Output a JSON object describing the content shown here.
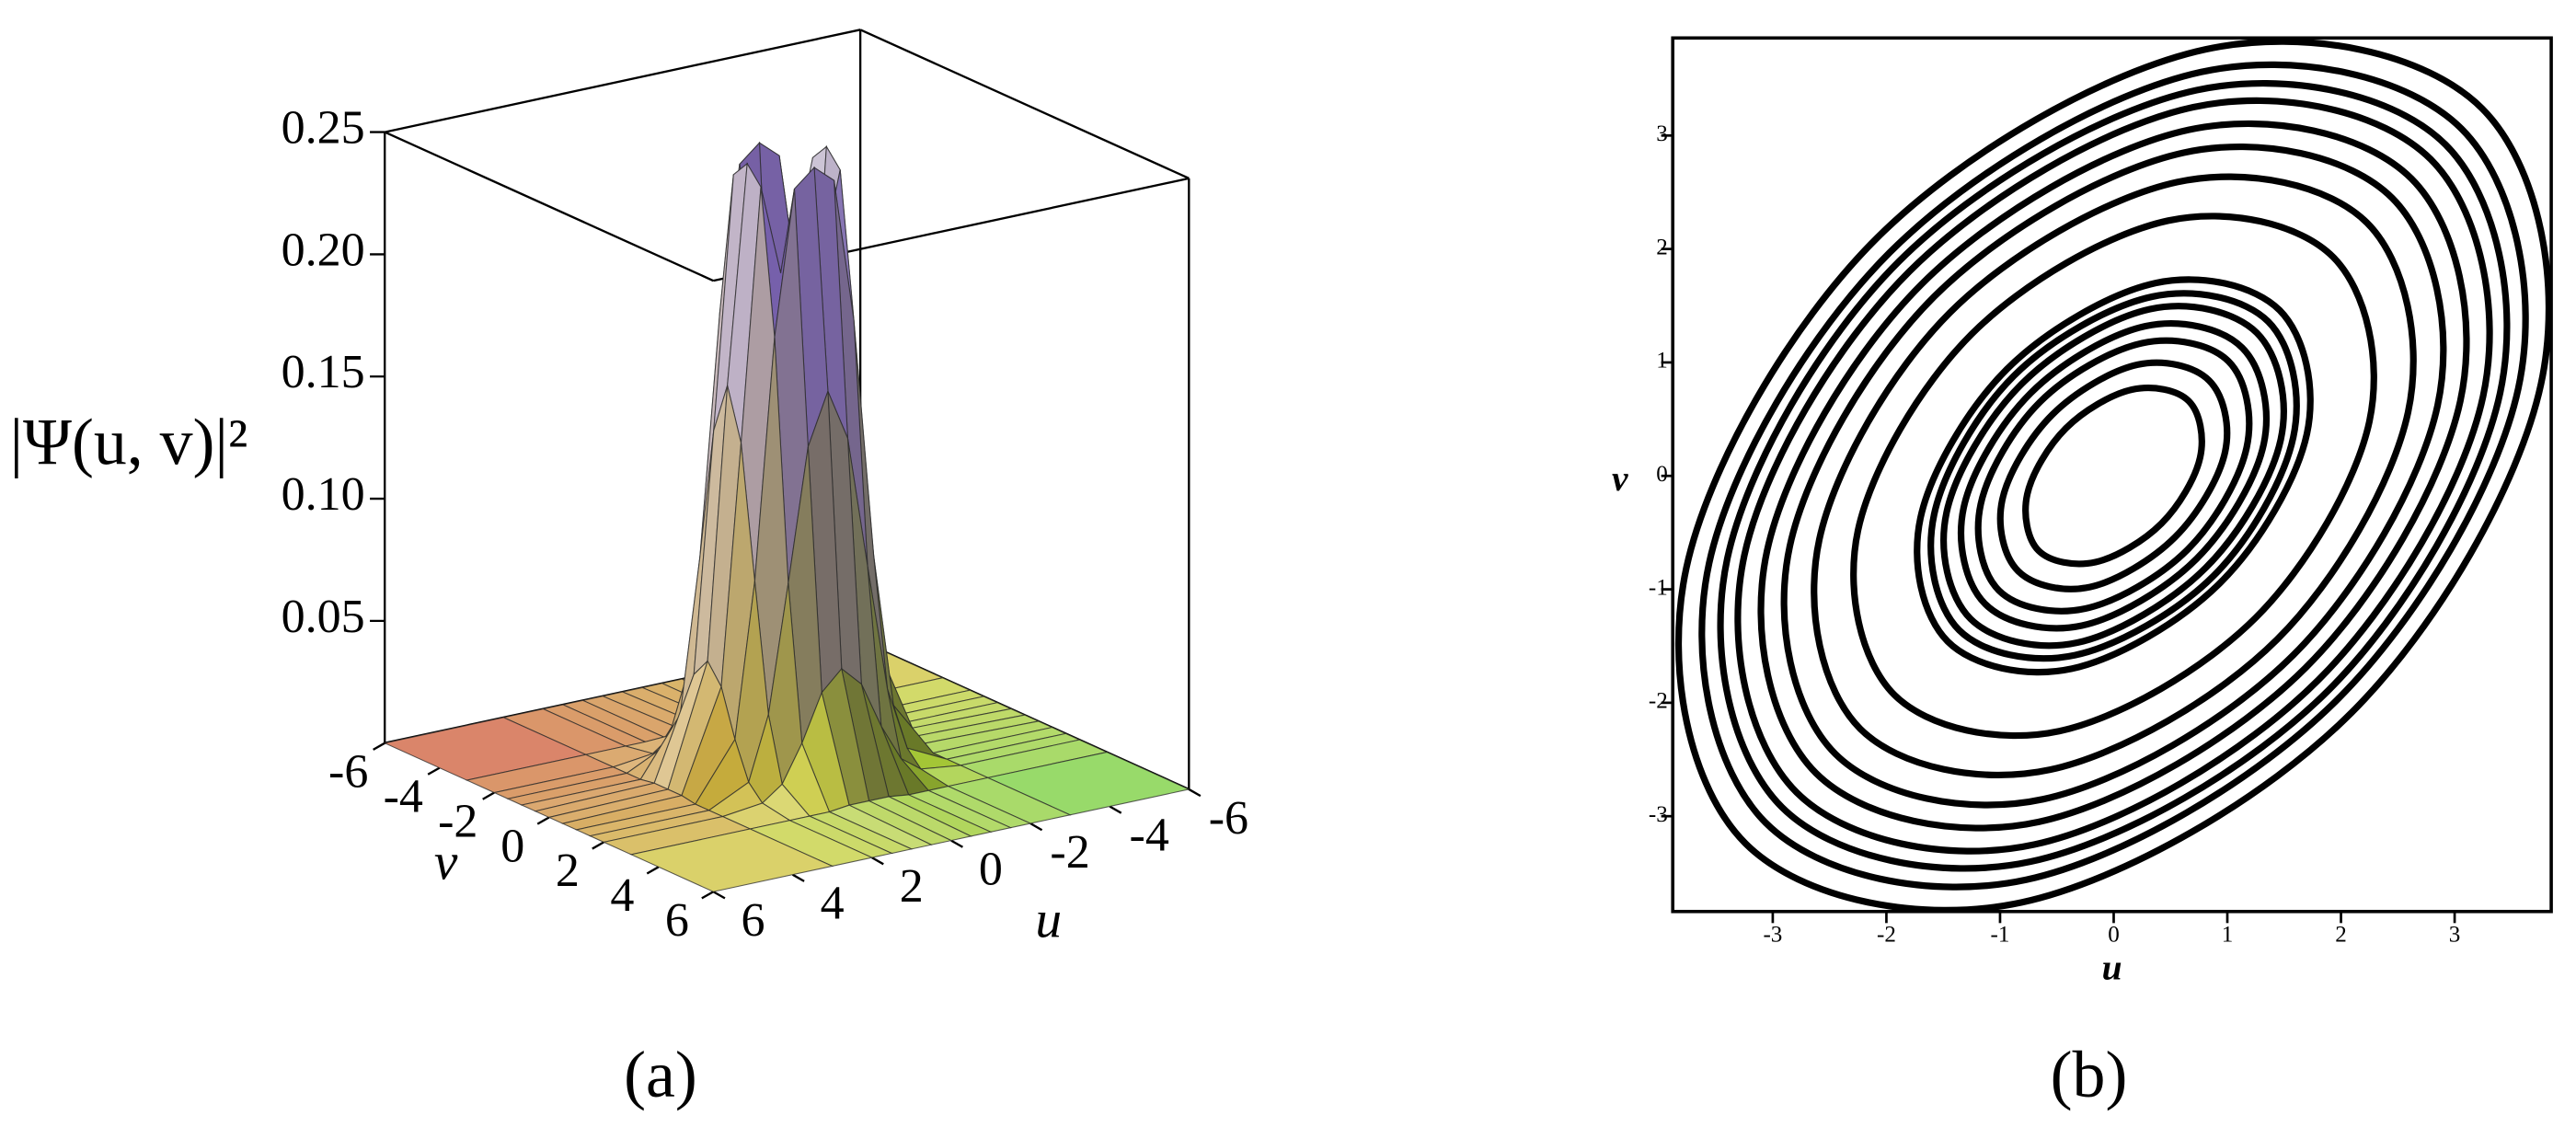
{
  "chart_data": [
    {
      "type": "surface",
      "caption": "(a)",
      "zlabel": "|Ψ(u, v)|²",
      "xlabel": "u",
      "ylabel": "v",
      "xlim": [
        -6,
        6
      ],
      "ylim": [
        -6,
        6
      ],
      "zlim": [
        0,
        0.25
      ],
      "xticks": [
        -6,
        -4,
        -2,
        0,
        2,
        4,
        6
      ],
      "yticks": [
        -6,
        -4,
        -2,
        0,
        2,
        4,
        6
      ],
      "zticks": [
        0.05,
        {
          "value": 0.1,
          "label": "0.10"
        },
        0.15,
        {
          "value": 0.2,
          "label": "0.20"
        },
        0.25
      ],
      "x": [
        -6,
        -3,
        -2,
        -1.5,
        -1,
        -0.5,
        0,
        0.5,
        1,
        1.5,
        2,
        3,
        6
      ],
      "y": [
        -6,
        -3,
        -2,
        -1.5,
        -1,
        -0.5,
        0,
        0.5,
        1,
        1.5,
        2,
        3,
        6
      ],
      "z": [
        [
          0,
          0,
          0,
          0,
          0,
          0,
          0,
          0,
          0,
          0,
          0,
          0,
          0
        ],
        [
          0,
          0,
          0,
          0,
          0,
          0.001,
          0.001,
          0.001,
          0,
          0,
          0,
          0,
          0
        ],
        [
          0,
          0,
          0.002,
          0.008,
          0.023,
          0.042,
          0.05,
          0.042,
          0.023,
          0.008,
          0.002,
          0,
          0
        ],
        [
          0,
          0,
          0.008,
          0.034,
          0.086,
          0.14,
          0.161,
          0.14,
          0.086,
          0.034,
          0.008,
          0,
          0
        ],
        [
          0,
          0,
          0.023,
          0.086,
          0.184,
          0.243,
          0.25,
          0.243,
          0.184,
          0.086,
          0.023,
          0,
          0
        ],
        [
          0,
          0.001,
          0.042,
          0.14,
          0.243,
          0.206,
          0.132,
          0.206,
          0.243,
          0.14,
          0.042,
          0.001,
          0
        ],
        [
          0,
          0.001,
          0.05,
          0.161,
          0.25,
          0.132,
          0,
          0.132,
          0.25,
          0.161,
          0.05,
          0.001,
          0
        ],
        [
          0,
          0.001,
          0.042,
          0.14,
          0.243,
          0.206,
          0.132,
          0.206,
          0.243,
          0.14,
          0.042,
          0.001,
          0
        ],
        [
          0,
          0,
          0.023,
          0.086,
          0.184,
          0.243,
          0.25,
          0.243,
          0.184,
          0.086,
          0.023,
          0,
          0
        ],
        [
          0,
          0,
          0.008,
          0.034,
          0.086,
          0.14,
          0.161,
          0.14,
          0.086,
          0.034,
          0.008,
          0,
          0
        ],
        [
          0,
          0,
          0.002,
          0.008,
          0.023,
          0.042,
          0.05,
          0.042,
          0.023,
          0.008,
          0.002,
          0,
          0
        ],
        [
          0,
          0,
          0,
          0,
          0,
          0.001,
          0.001,
          0.001,
          0,
          0,
          0,
          0,
          0
        ],
        [
          0,
          0,
          0,
          0,
          0,
          0,
          0,
          0,
          0,
          0,
          0,
          0,
          0
        ]
      ]
    },
    {
      "type": "contour",
      "caption": "(b)",
      "xlabel": "u",
      "ylabel": "v",
      "color": "#000000",
      "xlim": [
        -3.88,
        3.85
      ],
      "ylim": [
        -3.84,
        3.86
      ],
      "xticks": [
        -3,
        -2,
        -1,
        0,
        1,
        2,
        3
      ],
      "yticks": [
        -3,
        -2,
        -1,
        0,
        1,
        2,
        3
      ],
      "series": [
        {
          "x": [
            0.66,
            0.16,
            -0.42,
            -0.76,
            -0.66,
            -0.16,
            0.42,
            0.76
          ],
          "y": [
            0.66,
            0.76,
            0.42,
            -0.16,
            -0.66,
            -0.76,
            -0.42,
            0.16
          ]
        },
        {
          "x": [
            0.84,
            0.21,
            -0.54,
            -0.98,
            -0.84,
            -0.21,
            0.54,
            0.98
          ],
          "y": [
            0.84,
            0.98,
            0.54,
            -0.21,
            -0.84,
            -0.98,
            -0.54,
            0.21
          ]
        },
        {
          "x": [
            1.01,
            0.25,
            -0.65,
            -1.17,
            -1.01,
            -0.25,
            0.65,
            1.17
          ],
          "y": [
            1.01,
            1.17,
            0.65,
            -0.25,
            -1.01,
            -1.17,
            -0.65,
            0.25
          ]
        },
        {
          "x": [
            1.13,
            0.28,
            -0.73,
            -1.32,
            -1.13,
            -0.28,
            0.73,
            1.32
          ],
          "y": [
            1.13,
            1.32,
            0.73,
            -0.28,
            -1.13,
            -1.32,
            -0.73,
            0.28
          ]
        },
        {
          "x": [
            1.26,
            0.32,
            -0.81,
            -1.47,
            -1.26,
            -0.32,
            0.81,
            1.47
          ],
          "y": [
            1.26,
            1.47,
            0.81,
            -0.32,
            -1.26,
            -1.47,
            -0.81,
            0.32
          ]
        },
        {
          "x": [
            1.36,
            0.34,
            -0.88,
            -1.58,
            -1.36,
            -0.34,
            0.88,
            1.58
          ],
          "y": [
            1.36,
            1.58,
            0.88,
            -0.34,
            -1.36,
            -1.58,
            -0.88,
            0.34
          ]
        },
        {
          "x": [
            1.46,
            0.37,
            -0.94,
            -1.7,
            -1.46,
            -0.37,
            0.94,
            1.7
          ],
          "y": [
            1.46,
            1.7,
            0.94,
            -0.37,
            -1.46,
            -1.7,
            -0.94,
            0.37
          ]
        },
        {
          "x": [
            1.93,
            0.48,
            -1.25,
            -2.25,
            -1.93,
            -0.48,
            1.25,
            2.25
          ],
          "y": [
            1.93,
            2.25,
            1.25,
            -0.48,
            -1.93,
            -2.25,
            -1.25,
            0.48
          ]
        },
        {
          "x": [
            2.23,
            0.56,
            -1.44,
            -2.59,
            -2.23,
            -0.56,
            1.44,
            2.59
          ],
          "y": [
            2.23,
            2.59,
            1.44,
            -0.56,
            -2.23,
            -2.59,
            -1.44,
            0.56
          ]
        },
        {
          "x": [
            2.45,
            0.62,
            -1.58,
            -2.85,
            -2.45,
            -0.62,
            1.58,
            2.85
          ],
          "y": [
            2.45,
            2.85,
            1.58,
            -0.62,
            -2.45,
            -2.85,
            -1.58,
            0.62
          ]
        },
        {
          "x": [
            2.62,
            0.66,
            -1.69,
            -3.05,
            -2.62,
            -0.66,
            1.69,
            3.05
          ],
          "y": [
            2.62,
            3.05,
            1.69,
            -0.66,
            -2.62,
            -3.05,
            -1.69,
            0.66
          ]
        },
        {
          "x": [
            2.79,
            0.7,
            -1.8,
            -3.25,
            -2.79,
            -0.7,
            1.8,
            3.25
          ],
          "y": [
            2.79,
            3.25,
            1.8,
            -0.7,
            -2.79,
            -3.25,
            -1.8,
            0.7
          ]
        },
        {
          "x": [
            2.92,
            0.73,
            -1.89,
            -3.4,
            -2.92,
            -0.73,
            1.89,
            3.4
          ],
          "y": [
            2.92,
            3.4,
            1.89,
            -0.73,
            -2.92,
            -3.4,
            -1.89,
            0.73
          ]
        },
        {
          "x": [
            3.06,
            0.77,
            -1.97,
            -3.56,
            -3.06,
            -0.77,
            1.97,
            3.56
          ],
          "y": [
            3.06,
            3.56,
            1.97,
            -0.77,
            -3.06,
            -3.56,
            -1.97,
            0.77
          ]
        },
        {
          "x": [
            3.24,
            0.81,
            -2.09,
            -3.76,
            -3.24,
            -0.81,
            2.09,
            3.76
          ],
          "y": [
            3.24,
            3.76,
            2.09,
            -0.81,
            -3.24,
            -3.76,
            -2.09,
            0.81
          ]
        }
      ]
    }
  ]
}
